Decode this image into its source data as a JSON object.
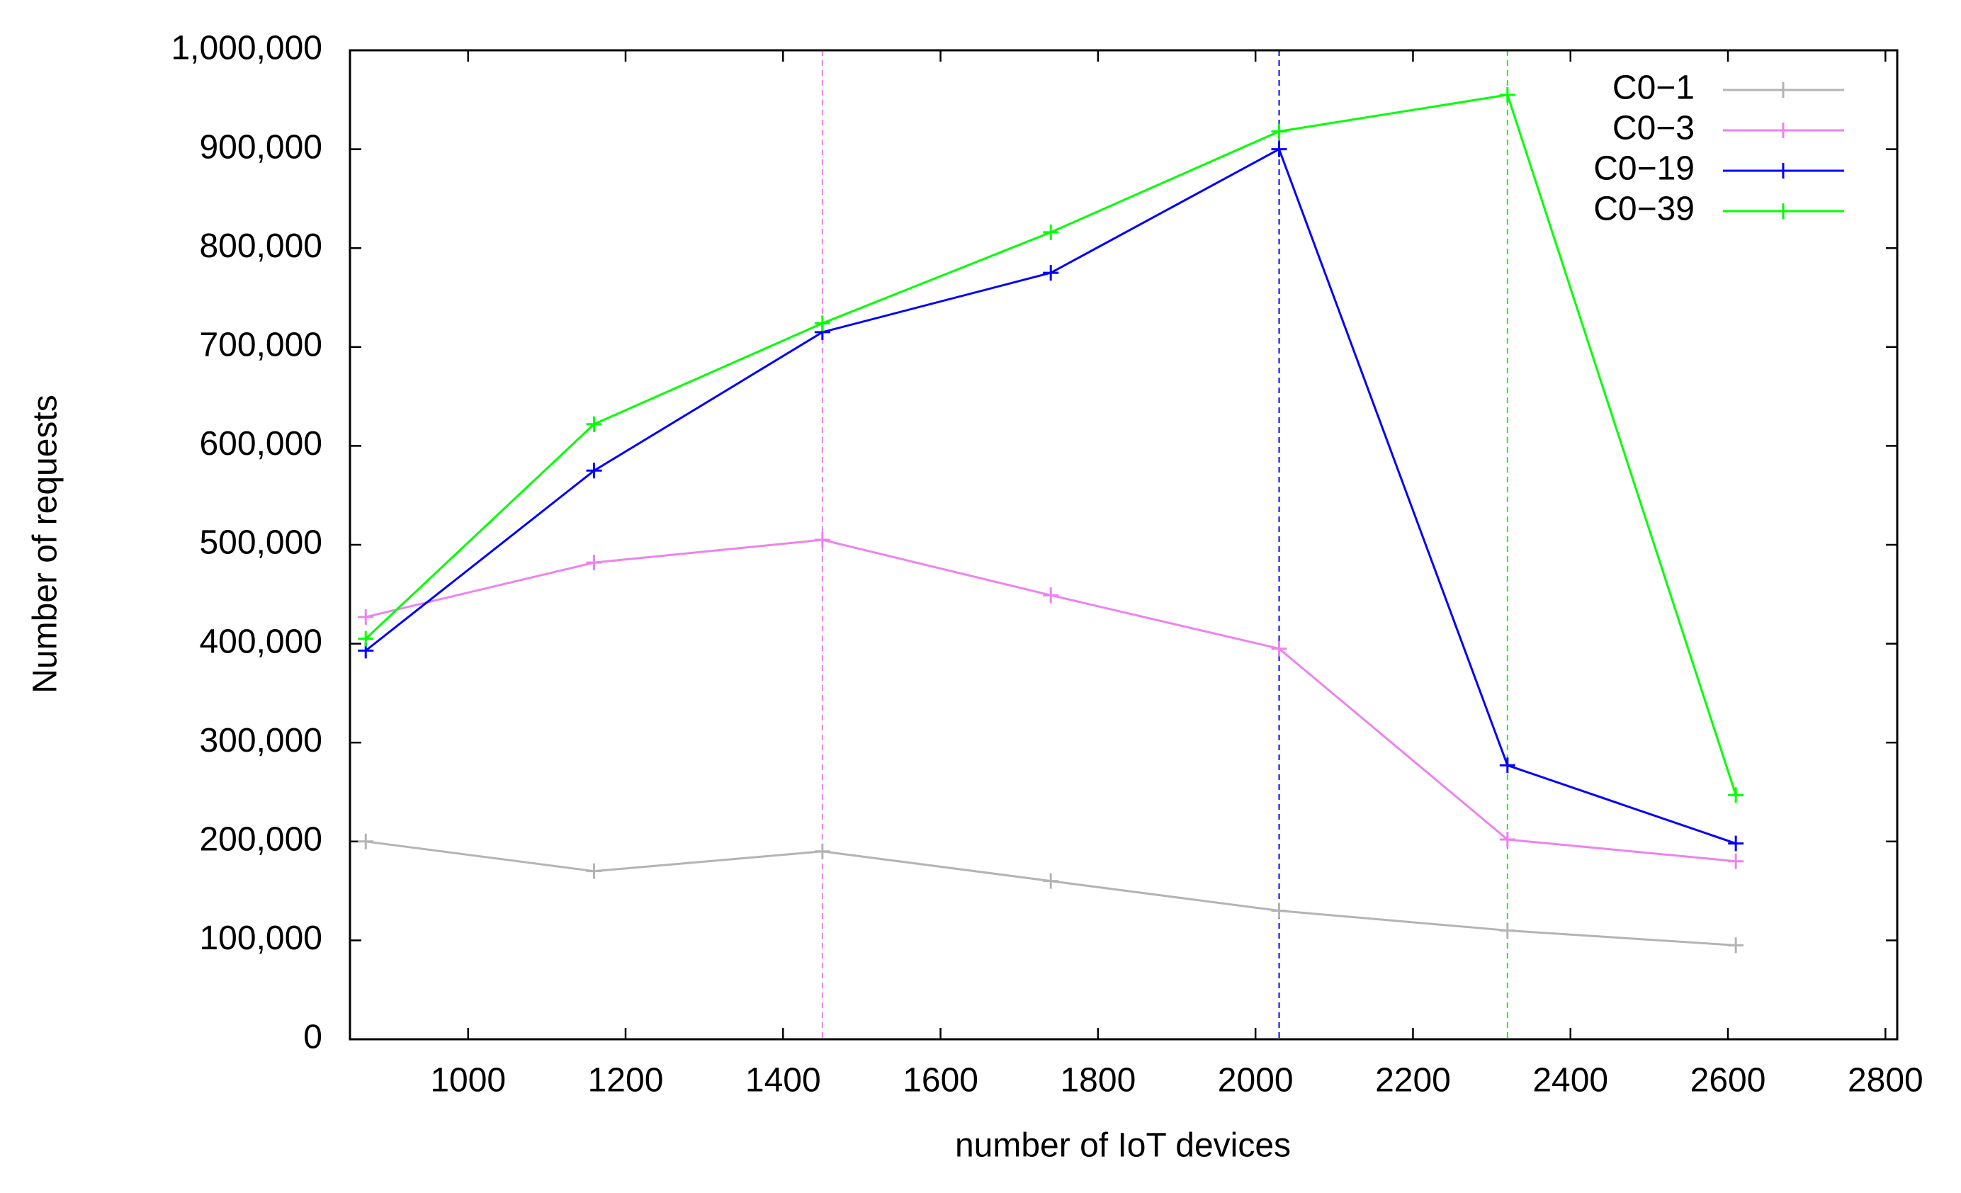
{
  "chart_data": {
    "type": "line",
    "xlabel": "number of IoT devices",
    "ylabel": "Number of requests",
    "x": [
      870,
      1160,
      1450,
      1740,
      2030,
      2320,
      2610
    ],
    "series": [
      {
        "name": "C0−1",
        "color": "#b4b4b4",
        "values": [
          200000,
          170000,
          190000,
          160000,
          130000,
          110000,
          95000
        ]
      },
      {
        "name": "C0−3",
        "color": "#ee82ee",
        "values": [
          427000,
          482000,
          505000,
          449000,
          395000,
          202000,
          180000
        ]
      },
      {
        "name": "C0−19",
        "color": "#0000ff",
        "values": [
          393000,
          575000,
          715000,
          775000,
          900000,
          277000,
          198000
        ]
      },
      {
        "name": "C0−39",
        "color": "#00ff00",
        "values": [
          405000,
          622000,
          724000,
          816000,
          918000,
          955000,
          247000
        ]
      }
    ],
    "vlines": [
      {
        "x": 1450,
        "color": "#ee82ee"
      },
      {
        "x": 2030,
        "color": "#0000ff"
      },
      {
        "x": 2320,
        "color": "#00ff00"
      }
    ],
    "xlim": [
      850,
      2815
    ],
    "xticks": [
      1000,
      1200,
      1400,
      1600,
      1800,
      2000,
      2200,
      2400,
      2600,
      2800
    ],
    "ylim": [
      0,
      1000000
    ],
    "yticks": [
      0,
      {
        "value": 100000,
        "label": "100,000"
      },
      {
        "value": 200000,
        "label": "200,000"
      },
      {
        "value": 300000,
        "label": "300,000"
      },
      {
        "value": 400000,
        "label": "400,000"
      },
      {
        "value": 500000,
        "label": "500,000"
      },
      {
        "value": 600000,
        "label": "600,000"
      },
      {
        "value": 700000,
        "label": "700,000"
      },
      {
        "value": 800000,
        "label": "800,000"
      },
      {
        "value": 900000,
        "label": "900,000"
      },
      {
        "value": 1000000,
        "label": "1,000,000"
      }
    ],
    "legend": "top-right"
  }
}
